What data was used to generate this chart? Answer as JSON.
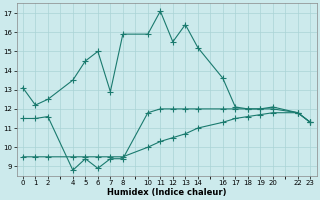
{
  "xlabel": "Humidex (Indice chaleur)",
  "background_color": "#cceaec",
  "grid_color": "#aad4d6",
  "line_color": "#1a7a6e",
  "xlim": [
    -0.5,
    23.5
  ],
  "ylim": [
    8.5,
    17.5
  ],
  "xticks": [
    0,
    1,
    2,
    4,
    5,
    6,
    7,
    8,
    10,
    11,
    12,
    13,
    14,
    16,
    17,
    18,
    19,
    20,
    22,
    23
  ],
  "yticks": [
    9,
    10,
    11,
    12,
    13,
    14,
    15,
    16,
    17
  ],
  "series1_x": [
    0,
    1,
    2,
    4,
    5,
    6,
    7,
    8,
    10,
    11,
    12,
    13,
    14,
    16,
    17,
    18,
    19,
    20,
    22,
    23
  ],
  "series1_y": [
    13.1,
    12.2,
    12.5,
    13.5,
    14.5,
    15.0,
    12.9,
    15.9,
    15.9,
    17.1,
    15.5,
    16.4,
    15.2,
    13.6,
    12.1,
    12.0,
    12.0,
    12.1,
    11.8,
    11.3
  ],
  "series2_x": [
    0,
    1,
    2,
    4,
    5,
    6,
    7,
    8,
    10,
    11,
    12,
    13,
    14,
    16,
    17,
    18,
    19,
    20,
    22,
    23
  ],
  "series2_y": [
    11.5,
    11.5,
    11.6,
    8.8,
    9.4,
    8.9,
    9.4,
    9.4,
    11.8,
    12.0,
    12.0,
    12.0,
    12.0,
    12.0,
    12.0,
    12.0,
    12.0,
    12.0,
    11.8,
    11.3
  ],
  "series3_x": [
    0,
    1,
    2,
    4,
    5,
    6,
    7,
    8,
    10,
    11,
    12,
    13,
    14,
    16,
    17,
    18,
    19,
    20,
    22,
    23
  ],
  "series3_y": [
    9.5,
    9.5,
    9.5,
    9.5,
    9.5,
    9.5,
    9.5,
    9.5,
    10.0,
    10.3,
    10.5,
    10.7,
    11.0,
    11.3,
    11.5,
    11.6,
    11.7,
    11.8,
    11.8,
    11.3
  ]
}
